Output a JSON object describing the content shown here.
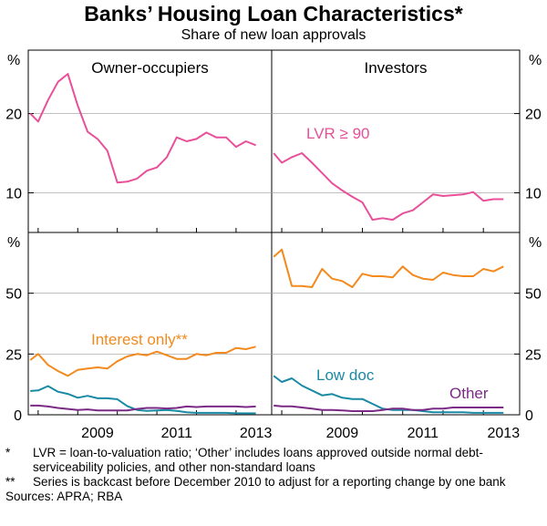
{
  "header": {
    "title": "Banks’ Housing Loan Characteristics*",
    "subtitle": "Share of new loan approvals"
  },
  "footnotes": [
    {
      "marker": "*",
      "text": "LVR = loan-to-valuation ratio; ‘Other’ includes loans approved outside normal debt-serviceability policies, and other non-standard loans"
    },
    {
      "marker": "**",
      "text": "Series is backcast before December 2010 to adjust for a reporting change by one bank"
    }
  ],
  "sources": "Sources: APRA; RBA",
  "colors": {
    "lvr": "#e8509a",
    "interest_only": "#f28a1e",
    "low_doc": "#1a8aa4",
    "other": "#7b2a86",
    "axis": "#000000",
    "divider": "#9a9a9a"
  },
  "chart_data": [
    {
      "type": "line",
      "panel": "Owner-occupiers",
      "row": "top",
      "unit": "%",
      "ylim": [
        5,
        28
      ],
      "yticks": [
        10,
        20
      ],
      "xlim": [
        2007.75,
        2013.9
      ],
      "series": [
        {
          "name": "LVR ≥ 90",
          "color_key": "lvr",
          "x": [
            2007.8,
            2008.0,
            2008.25,
            2008.5,
            2008.75,
            2009.0,
            2009.25,
            2009.5,
            2009.75,
            2010.0,
            2010.25,
            2010.5,
            2010.75,
            2011.0,
            2011.25,
            2011.5,
            2011.75,
            2012.0,
            2012.25,
            2012.5,
            2012.75,
            2013.0,
            2013.25,
            2013.5
          ],
          "y": [
            20.0,
            19.0,
            21.7,
            24.0,
            25.0,
            21.0,
            17.7,
            16.8,
            15.3,
            11.3,
            11.4,
            11.8,
            12.8,
            13.2,
            14.5,
            17.0,
            16.5,
            16.8,
            17.6,
            17.0,
            17.0,
            15.8,
            16.5,
            16.0
          ]
        }
      ]
    },
    {
      "type": "line",
      "panel": "Investors",
      "row": "top",
      "unit": "%",
      "ylim": [
        5,
        28
      ],
      "yticks": [
        10,
        20
      ],
      "xlim": [
        2007.75,
        2013.9
      ],
      "series": [
        {
          "name": "LVR ≥ 90",
          "color_key": "lvr",
          "x": [
            2007.8,
            2008.0,
            2008.25,
            2008.5,
            2008.75,
            2009.0,
            2009.25,
            2009.5,
            2009.75,
            2010.0,
            2010.25,
            2010.5,
            2010.75,
            2011.0,
            2011.25,
            2011.5,
            2011.75,
            2012.0,
            2012.25,
            2012.5,
            2012.75,
            2013.0,
            2013.25,
            2013.5
          ],
          "y": [
            15.0,
            13.8,
            14.5,
            15.0,
            13.8,
            12.5,
            11.2,
            10.3,
            9.5,
            8.8,
            6.6,
            6.8,
            6.6,
            7.4,
            7.8,
            8.8,
            9.8,
            9.6,
            9.7,
            9.8,
            10.1,
            9.0,
            9.2,
            9.2
          ]
        }
      ]
    },
    {
      "type": "line",
      "panel": "Owner-occupiers",
      "row": "bottom",
      "unit": "%",
      "ylim": [
        0,
        75
      ],
      "yticks": [
        0,
        25,
        50
      ],
      "xlim": [
        2007.75,
        2013.9
      ],
      "xticks": [
        2009,
        2011,
        2013
      ],
      "series": [
        {
          "name": "Interest only**",
          "color_key": "interest_only",
          "x": [
            2007.8,
            2008.0,
            2008.25,
            2008.5,
            2008.75,
            2009.0,
            2009.25,
            2009.5,
            2009.75,
            2010.0,
            2010.25,
            2010.5,
            2010.75,
            2011.0,
            2011.25,
            2011.5,
            2011.75,
            2012.0,
            2012.25,
            2012.5,
            2012.75,
            2013.0,
            2013.25,
            2013.5
          ],
          "y": [
            22.5,
            25.0,
            20.5,
            18.0,
            16.0,
            18.5,
            19.0,
            19.5,
            19.0,
            22.0,
            24.0,
            25.0,
            24.5,
            26.0,
            24.5,
            23.0,
            23.0,
            25.0,
            24.5,
            25.5,
            25.5,
            27.5,
            27.0,
            28.0
          ]
        },
        {
          "name": "Low doc",
          "color_key": "low_doc",
          "x": [
            2007.8,
            2008.0,
            2008.25,
            2008.5,
            2008.75,
            2009.0,
            2009.25,
            2009.5,
            2009.75,
            2010.0,
            2010.25,
            2010.5,
            2010.75,
            2011.0,
            2011.25,
            2011.5,
            2011.75,
            2012.0,
            2012.25,
            2012.5,
            2012.75,
            2013.0,
            2013.25,
            2013.5
          ],
          "y": [
            9.8,
            10.0,
            11.8,
            9.5,
            8.6,
            7.0,
            7.8,
            6.8,
            6.8,
            6.4,
            3.6,
            2.0,
            1.6,
            1.8,
            2.0,
            1.6,
            1.0,
            0.8,
            0.8,
            0.8,
            0.8,
            0.6,
            0.6,
            0.6
          ]
        },
        {
          "name": "Other",
          "color_key": "other",
          "x": [
            2007.8,
            2008.0,
            2008.25,
            2008.5,
            2008.75,
            2009.0,
            2009.25,
            2009.5,
            2009.75,
            2010.0,
            2010.25,
            2010.5,
            2010.75,
            2011.0,
            2011.25,
            2011.5,
            2011.75,
            2012.0,
            2012.25,
            2012.5,
            2012.75,
            2013.0,
            2013.25,
            2013.5
          ],
          "y": [
            3.8,
            3.8,
            3.4,
            2.8,
            2.4,
            2.0,
            2.2,
            1.8,
            1.8,
            1.8,
            1.8,
            2.4,
            2.8,
            2.8,
            2.6,
            2.8,
            3.4,
            3.2,
            3.4,
            3.4,
            3.4,
            3.4,
            3.2,
            3.4
          ]
        }
      ]
    },
    {
      "type": "line",
      "panel": "Investors",
      "row": "bottom",
      "unit": "%",
      "ylim": [
        0,
        75
      ],
      "yticks": [
        0,
        25,
        50
      ],
      "xlim": [
        2007.75,
        2013.9
      ],
      "xticks": [
        2009,
        2011,
        2013
      ],
      "series": [
        {
          "name": "",
          "color_key": "interest_only",
          "x": [
            2007.8,
            2008.0,
            2008.25,
            2008.5,
            2008.75,
            2009.0,
            2009.25,
            2009.5,
            2009.75,
            2010.0,
            2010.25,
            2010.5,
            2010.75,
            2011.0,
            2011.25,
            2011.5,
            2011.75,
            2012.0,
            2012.25,
            2012.5,
            2012.75,
            2013.0,
            2013.25,
            2013.5
          ],
          "y": [
            65.0,
            68.0,
            53.0,
            53.0,
            52.5,
            60.0,
            56.0,
            55.0,
            52.5,
            58.0,
            57.0,
            57.0,
            56.5,
            61.0,
            57.5,
            56.0,
            55.5,
            58.5,
            57.5,
            57.0,
            57.0,
            60.0,
            59.0,
            61.0
          ]
        },
        {
          "name": "",
          "color_key": "low_doc",
          "x": [
            2007.8,
            2008.0,
            2008.25,
            2008.5,
            2008.75,
            2009.0,
            2009.25,
            2009.5,
            2009.75,
            2010.0,
            2010.25,
            2010.5,
            2010.75,
            2011.0,
            2011.25,
            2011.5,
            2011.75,
            2012.0,
            2012.25,
            2012.5,
            2012.75,
            2013.0,
            2013.25,
            2013.5
          ],
          "y": [
            16.0,
            13.5,
            15.0,
            12.0,
            10.0,
            8.0,
            8.5,
            7.0,
            6.5,
            6.5,
            4.5,
            2.5,
            2.0,
            2.0,
            2.0,
            1.5,
            1.0,
            1.0,
            1.0,
            1.0,
            0.8,
            0.8,
            0.8,
            0.8
          ]
        },
        {
          "name": "",
          "color_key": "other",
          "x": [
            2007.8,
            2008.0,
            2008.25,
            2008.5,
            2008.75,
            2009.0,
            2009.25,
            2009.5,
            2009.75,
            2010.0,
            2010.25,
            2010.5,
            2010.75,
            2011.0,
            2011.25,
            2011.5,
            2011.75,
            2012.0,
            2012.25,
            2012.5,
            2012.75,
            2013.0,
            2013.25,
            2013.5
          ],
          "y": [
            3.8,
            3.5,
            3.5,
            3.0,
            2.5,
            2.0,
            2.0,
            1.8,
            1.5,
            1.5,
            1.5,
            2.0,
            2.5,
            2.5,
            2.0,
            2.0,
            2.5,
            2.5,
            3.0,
            3.0,
            3.0,
            3.0,
            3.0,
            3.0
          ]
        }
      ]
    }
  ],
  "panel_titles": {
    "left": "Owner-occupiers",
    "right": "Investors"
  },
  "unit_label": "%",
  "series_labels": {
    "lvr": "LVR ≥ 90",
    "interest_only": "Interest only**",
    "low_doc": "Low doc",
    "other": "Other"
  }
}
